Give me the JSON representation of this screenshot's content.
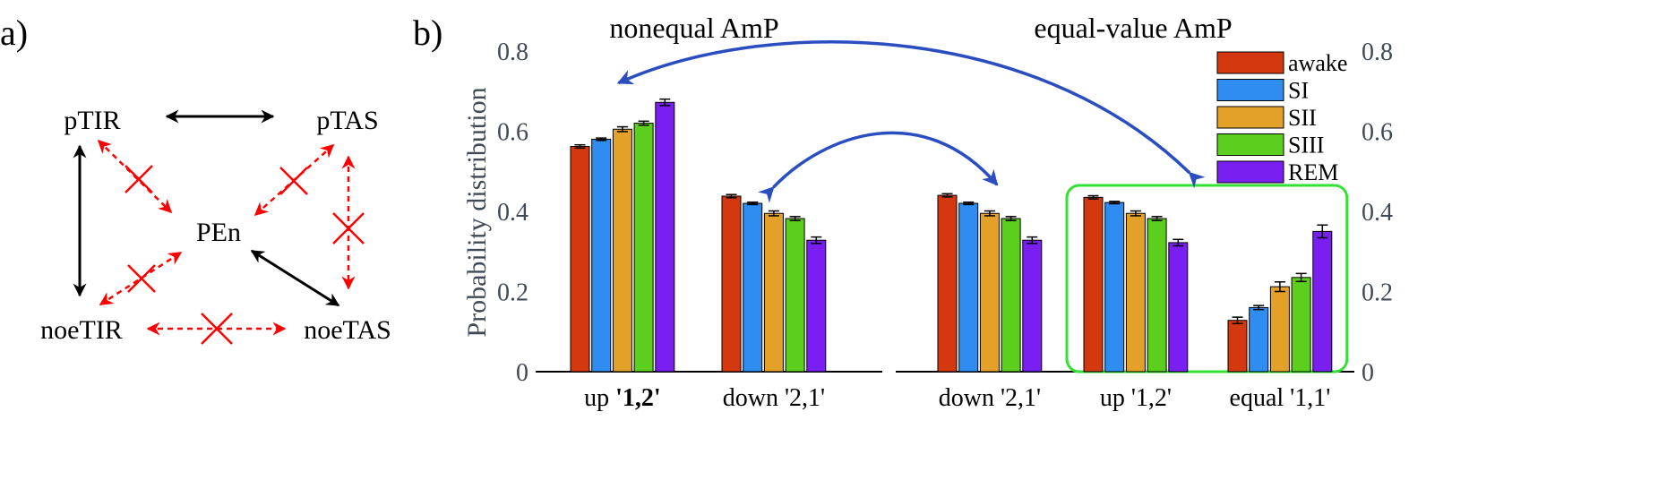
{
  "panel_a": {
    "label": "a)",
    "nodes": {
      "ptir": "pTIR",
      "ptas": "pTAS",
      "pen": "PEn",
      "noetir": "noeTIR",
      "noetas": "noeTAS"
    },
    "edges": [
      {
        "from": "ptir",
        "to": "ptas",
        "style": "solid",
        "color": "#000000",
        "blocked": false
      },
      {
        "from": "ptir",
        "to": "noetir",
        "style": "solid",
        "color": "#000000",
        "blocked": false
      },
      {
        "from": "pen",
        "to": "noetas",
        "style": "solid",
        "color": "#000000",
        "blocked": false
      },
      {
        "from": "ptir",
        "to": "pen",
        "style": "dashed",
        "color": "#ff0000",
        "blocked": true
      },
      {
        "from": "ptas",
        "to": "pen",
        "style": "dashed",
        "color": "#ff0000",
        "blocked": true
      },
      {
        "from": "ptas",
        "to": "noetas",
        "style": "dashed",
        "color": "#ff0000",
        "blocked": true
      },
      {
        "from": "noetir",
        "to": "pen",
        "style": "dashed",
        "color": "#ff0000",
        "blocked": true
      },
      {
        "from": "noetir",
        "to": "noetas",
        "style": "dashed",
        "color": "#ff0000",
        "blocked": true
      }
    ]
  },
  "panel_b": {
    "label": "b)",
    "section_titles": [
      "nonequal AmP",
      "equal-value AmP"
    ],
    "arrow_color": "#2a4dbf",
    "highlight_color": "#33e033"
  },
  "chart_data": {
    "type": "bar",
    "title": "",
    "ylabel": "Probability distribution",
    "xlabel": "",
    "ylim": [
      0,
      0.8
    ],
    "yticks": [
      0,
      0.2,
      0.4,
      0.6,
      0.8
    ],
    "ytick_labels": [
      "0",
      "0.2",
      "0.4",
      "0.6",
      "0.8"
    ],
    "right_axis_ticks": [
      "0",
      "0.2",
      "0.4",
      "0.6",
      "0.8"
    ],
    "legend_position": "top-right",
    "categories": [
      {
        "prefix": "up",
        "code": "'1,2'",
        "bold_code": true,
        "group": "nonequal AmP"
      },
      {
        "prefix": "down",
        "code": "'2,1'",
        "bold_code": false,
        "group": "nonequal AmP"
      },
      {
        "prefix": "down",
        "code": "'2,1'",
        "bold_code": false,
        "group": "equal-value AmP"
      },
      {
        "prefix": "up",
        "code": "'1,2'",
        "bold_code": false,
        "group": "equal-value AmP"
      },
      {
        "prefix": "equal",
        "code": "'1,1'",
        "bold_code": false,
        "group": "equal-value AmP"
      }
    ],
    "series": [
      {
        "name": "awake",
        "color": "#d4380e",
        "values": [
          0.562,
          0.438,
          0.44,
          0.435,
          0.128
        ],
        "errors": [
          0.004,
          0.004,
          0.004,
          0.004,
          0.008
        ]
      },
      {
        "name": "SI",
        "color": "#2f8cf0",
        "values": [
          0.58,
          0.42,
          0.42,
          0.422,
          0.16
        ],
        "errors": [
          0.003,
          0.003,
          0.003,
          0.003,
          0.005
        ]
      },
      {
        "name": "SII",
        "color": "#e3a12a",
        "values": [
          0.605,
          0.395,
          0.395,
          0.395,
          0.212
        ],
        "errors": [
          0.006,
          0.006,
          0.006,
          0.006,
          0.012
        ]
      },
      {
        "name": "SIII",
        "color": "#5ccf1e",
        "values": [
          0.62,
          0.382,
          0.382,
          0.382,
          0.235
        ],
        "errors": [
          0.005,
          0.005,
          0.005,
          0.005,
          0.01
        ]
      },
      {
        "name": "REM",
        "color": "#7a1ff2",
        "values": [
          0.672,
          0.328,
          0.328,
          0.322,
          0.35
        ],
        "errors": [
          0.008,
          0.008,
          0.008,
          0.008,
          0.016
        ]
      }
    ],
    "links": [
      {
        "from_category": 0,
        "to_category": 3
      },
      {
        "from_category": 1,
        "to_category": 2
      }
    ],
    "highlighted_categories": [
      3,
      4
    ]
  }
}
